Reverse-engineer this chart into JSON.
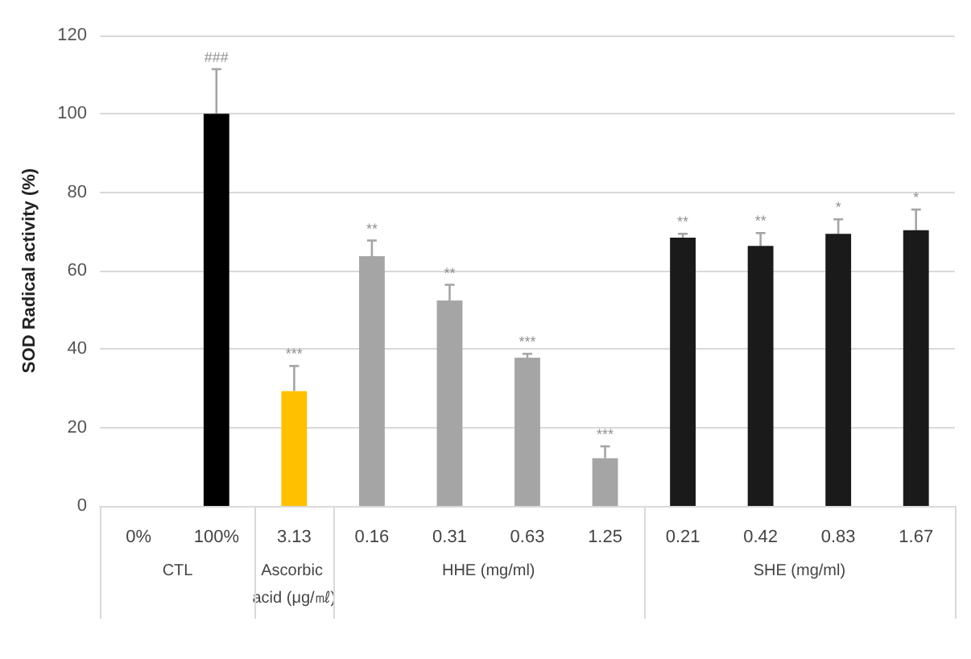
{
  "chart_data": {
    "type": "bar",
    "ylabel": "SOD Radical activity (%)",
    "categories": [
      "0%",
      "100%",
      "3.13",
      "0.16",
      "0.31",
      "0.63",
      "1.25",
      "0.21",
      "0.42",
      "0.83",
      "1.67"
    ],
    "values": [
      null,
      100,
      29.3,
      63.7,
      52.4,
      37.8,
      12.2,
      68.4,
      66.3,
      69.4,
      70.3
    ],
    "errors": [
      null,
      11.4,
      6.4,
      4,
      4,
      1,
      3,
      1,
      3.3,
      3.7,
      5.3
    ],
    "colors": [
      "#000000",
      "#000000",
      "#ffc000",
      "#a5a5a5",
      "#a5a5a5",
      "#a5a5a5",
      "#a5a5a5",
      "#1a1a1a",
      "#1a1a1a",
      "#1a1a1a",
      "#1a1a1a"
    ],
    "ylim": [
      0,
      120
    ],
    "yticks": [
      0,
      20,
      40,
      60,
      80,
      100,
      120
    ],
    "grid": "y",
    "annotations": [
      {
        "text": "###",
        "x": "100%",
        "y": 111.4
      },
      {
        "text": "***",
        "x": "3.13",
        "y": 35.7
      },
      {
        "text": "**",
        "x": "0.16",
        "y": 67.7
      },
      {
        "text": "**",
        "x": "0.31",
        "y": 56.4
      },
      {
        "text": "***",
        "x": "0.63",
        "y": 38.8
      },
      {
        "text": "***",
        "x": "1.25",
        "y": 15.2
      },
      {
        "text": "**",
        "x": "0.21",
        "y": 69.4
      },
      {
        "text": "**",
        "x": "0.42",
        "y": 69.6
      },
      {
        "text": "*",
        "x": "0.83",
        "y": 73.1
      },
      {
        "text": "*",
        "x": "1.67",
        "y": 75.6
      },
      "CTL",
      "Ascorbic acid (μg/㎖)",
      "HHE (mg/ml)",
      "SHE (mg/ml)"
    ]
  }
}
